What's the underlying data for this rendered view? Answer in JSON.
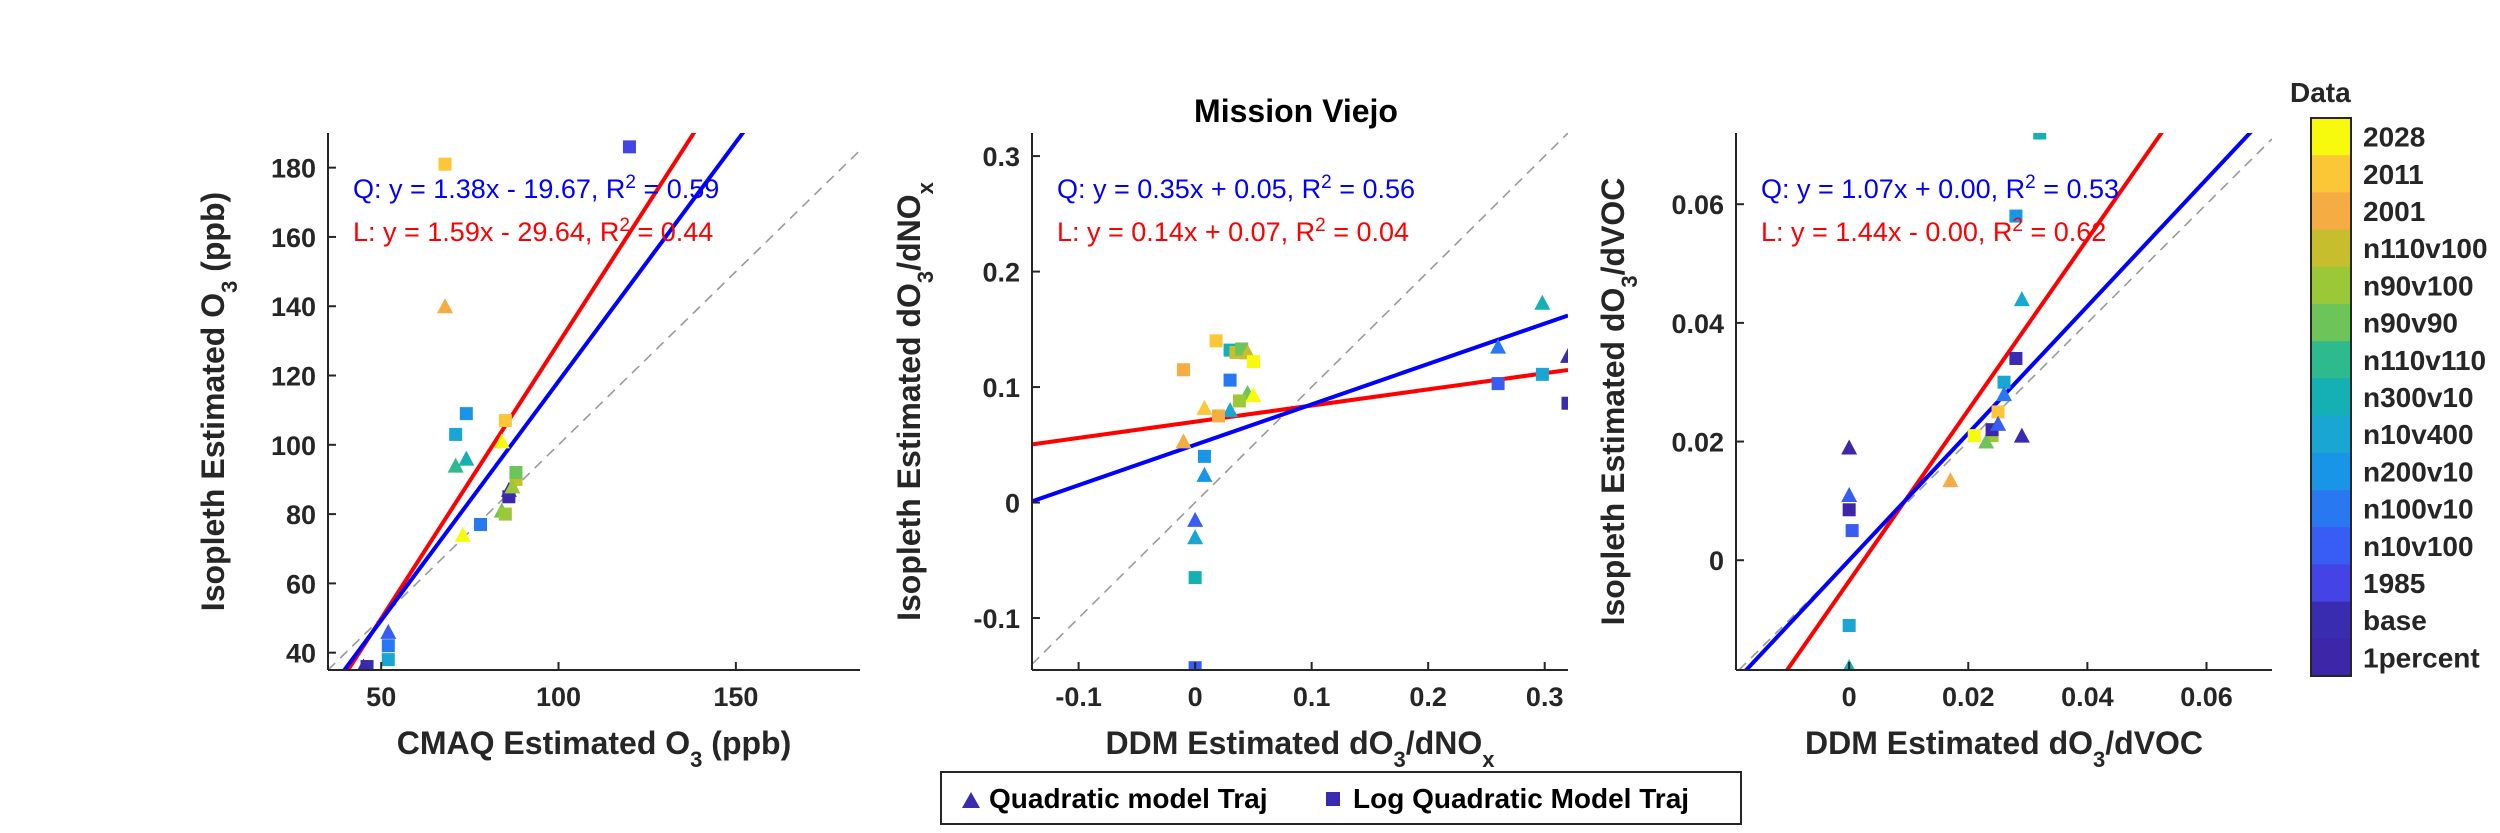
{
  "figure": {
    "title": "Mission Viejo",
    "colorbar": {
      "title": "Data",
      "labels": [
        "2028",
        "2011",
        "2001",
        "n110v100",
        "n90v100",
        "n90v90",
        "n110v110",
        "n300v10",
        "n10v400",
        "n200v10",
        "n100v10",
        "n10v100",
        "1985",
        "base",
        "1percent"
      ],
      "colors": [
        "#f8fa0d",
        "#fcc737",
        "#f5ac43",
        "#c7be2d",
        "#9bc836",
        "#6dc55a",
        "#2dba8d",
        "#15b0b4",
        "#1aa6d2",
        "#1895e6",
        "#2878f2",
        "#385df5",
        "#4443e5",
        "#3a2cb0",
        "#3e26a8"
      ]
    },
    "legend": {
      "items": [
        {
          "label": "Quadratic model Traj",
          "marker": "triangle",
          "marker_name": "triangle-marker-icon"
        },
        {
          "label": "Log Quadratic Model Traj",
          "marker": "square",
          "marker_name": "square-marker-icon"
        }
      ]
    }
  },
  "chart_data": [
    {
      "type": "scatter",
      "xlabel": "CMAQ Estimated O3 (ppb)",
      "ylabel": "Isopleth Estimated O3 (ppb)",
      "xlim": [
        35,
        185
      ],
      "ylim": [
        35,
        190
      ],
      "xticks": [
        50,
        100,
        150
      ],
      "yticks": [
        40,
        60,
        80,
        100,
        120,
        140,
        160,
        180
      ],
      "eq_q": "Q: y = 1.38x - 19.67, R",
      "eq_q_r2": " = 0.59",
      "eq_l": "L: y = 1.59x - 29.64, R",
      "eq_l_r2": " = 0.44",
      "fit_q": {
        "slope": 1.38,
        "intercept": -19.67,
        "color": "#0000ff"
      },
      "fit_l": {
        "slope": 1.59,
        "intercept": -29.64,
        "color": "#ff0000"
      },
      "points": [
        {
          "x": 68,
          "y": 181,
          "m": "s",
          "c": 1
        },
        {
          "x": 68,
          "y": 140,
          "m": "t",
          "c": 2
        },
        {
          "x": 120,
          "y": 186,
          "m": "s",
          "c": 12
        },
        {
          "x": 74,
          "y": 109,
          "m": "s",
          "c": 9
        },
        {
          "x": 71,
          "y": 103,
          "m": "s",
          "c": 8
        },
        {
          "x": 85,
          "y": 107,
          "m": "s",
          "c": 1
        },
        {
          "x": 84,
          "y": 101,
          "m": "t",
          "c": 0
        },
        {
          "x": 71,
          "y": 94,
          "m": "t",
          "c": 6
        },
        {
          "x": 74,
          "y": 96,
          "m": "t",
          "c": 7
        },
        {
          "x": 73,
          "y": 74,
          "m": "t",
          "c": 0
        },
        {
          "x": 78,
          "y": 77,
          "m": "s",
          "c": 10
        },
        {
          "x": 84,
          "y": 81,
          "m": "t",
          "c": 5
        },
        {
          "x": 86,
          "y": 85,
          "m": "s",
          "c": 14
        },
        {
          "x": 86,
          "y": 87,
          "m": "t",
          "c": 13
        },
        {
          "x": 88,
          "y": 90,
          "m": "s",
          "c": 3
        },
        {
          "x": 88,
          "y": 92,
          "m": "s",
          "c": 5
        },
        {
          "x": 87,
          "y": 88,
          "m": "t",
          "c": 4
        },
        {
          "x": 85,
          "y": 80,
          "m": "s",
          "c": 4
        },
        {
          "x": 52,
          "y": 46,
          "m": "t",
          "c": 11
        },
        {
          "x": 52,
          "y": 42,
          "m": "s",
          "c": 10
        },
        {
          "x": 52,
          "y": 38,
          "m": "s",
          "c": 8
        },
        {
          "x": 46,
          "y": 36,
          "m": "s",
          "c": 13
        },
        {
          "x": 45,
          "y": 36,
          "m": "t",
          "c": 14
        }
      ]
    },
    {
      "type": "scatter",
      "xlabel": "DDM Estimated dO3/dNOx",
      "ylabel": "Isopleth Estimated dO3/dNOx",
      "xlim": [
        -0.14,
        0.32
      ],
      "ylim": [
        -0.145,
        0.32
      ],
      "xticks": [
        -0.1,
        0,
        0.1,
        0.2,
        0.3
      ],
      "yticks": [
        -0.1,
        0,
        0.1,
        0.2,
        0.3
      ],
      "eq_q": "Q: y = 0.35x + 0.05, R",
      "eq_q_r2": " = 0.56",
      "eq_l": "L: y = 0.14x + 0.07, R",
      "eq_l_r2": " = 0.04",
      "fit_q": {
        "slope": 0.35,
        "intercept": 0.05,
        "color": "#0000ff"
      },
      "fit_l": {
        "slope": 0.14,
        "intercept": 0.07,
        "color": "#ff0000"
      },
      "points": [
        {
          "x": -0.01,
          "y": 0.115,
          "m": "s",
          "c": 2
        },
        {
          "x": -0.01,
          "y": 0.053,
          "m": "t",
          "c": 2
        },
        {
          "x": 0.018,
          "y": 0.14,
          "m": "s",
          "c": 1
        },
        {
          "x": 0.03,
          "y": 0.132,
          "m": "s",
          "c": 7
        },
        {
          "x": 0.035,
          "y": 0.13,
          "m": "s",
          "c": 3
        },
        {
          "x": 0.04,
          "y": 0.133,
          "m": "s",
          "c": 5
        },
        {
          "x": 0.045,
          "y": 0.13,
          "m": "t",
          "c": 3
        },
        {
          "x": 0.05,
          "y": 0.122,
          "m": "s",
          "c": 0
        },
        {
          "x": 0.03,
          "y": 0.106,
          "m": "s",
          "c": 10
        },
        {
          "x": 0.045,
          "y": 0.095,
          "m": "t",
          "c": 5
        },
        {
          "x": 0.05,
          "y": 0.093,
          "m": "t",
          "c": 0
        },
        {
          "x": 0.038,
          "y": 0.088,
          "m": "s",
          "c": 4
        },
        {
          "x": 0.03,
          "y": 0.08,
          "m": "t",
          "c": 8
        },
        {
          "x": 0.02,
          "y": 0.075,
          "m": "s",
          "c": 2
        },
        {
          "x": 0.008,
          "y": 0.082,
          "m": "t",
          "c": 1
        },
        {
          "x": 0.008,
          "y": 0.04,
          "m": "s",
          "c": 9
        },
        {
          "x": 0.008,
          "y": 0.024,
          "m": "t",
          "c": 9
        },
        {
          "x": 0.0,
          "y": -0.015,
          "m": "t",
          "c": 11
        },
        {
          "x": 0.0,
          "y": -0.03,
          "m": "t",
          "c": 8
        },
        {
          "x": 0.0,
          "y": -0.065,
          "m": "s",
          "c": 7
        },
        {
          "x": 0.0,
          "y": -0.143,
          "m": "s",
          "c": 11
        },
        {
          "x": 0.26,
          "y": 0.135,
          "m": "t",
          "c": 10
        },
        {
          "x": 0.26,
          "y": 0.103,
          "m": "s",
          "c": 11
        },
        {
          "x": 0.298,
          "y": 0.173,
          "m": "t",
          "c": 7
        },
        {
          "x": 0.298,
          "y": 0.111,
          "m": "s",
          "c": 8
        },
        {
          "x": 0.32,
          "y": 0.127,
          "m": "t",
          "c": 13
        },
        {
          "x": 0.32,
          "y": 0.086,
          "m": "s",
          "c": 13
        }
      ]
    },
    {
      "type": "scatter",
      "xlabel": "DDM Estimated dO3/dVOC",
      "ylabel": "Isopleth Estimated dO3/dVOC",
      "xlim": [
        -0.019,
        0.071
      ],
      "ylim": [
        -0.0185,
        0.072
      ],
      "xticks": [
        0,
        0.02,
        0.04,
        0.06
      ],
      "yticks": [
        0,
        0.02,
        0.04,
        0.06
      ],
      "eq_q": "Q: y = 1.07x + 0.00, R",
      "eq_q_r2": " = 0.53",
      "eq_l": "L: y = 1.44x - 0.00, R",
      "eq_l_r2": " = 0.62",
      "fit_q": {
        "slope": 1.07,
        "intercept": 0.0,
        "color": "#0000ff"
      },
      "fit_l": {
        "slope": 1.44,
        "intercept": -0.0035,
        "color": "#ff0000"
      },
      "points": [
        {
          "x": 0.032,
          "y": 0.072,
          "m": "s",
          "c": 7
        },
        {
          "x": 0.028,
          "y": 0.058,
          "m": "s",
          "c": 9
        },
        {
          "x": 0.029,
          "y": 0.044,
          "m": "t",
          "c": 8
        },
        {
          "x": 0.028,
          "y": 0.034,
          "m": "s",
          "c": 13
        },
        {
          "x": 0.026,
          "y": 0.03,
          "m": "s",
          "c": 8
        },
        {
          "x": 0.026,
          "y": 0.028,
          "m": "t",
          "c": 10
        },
        {
          "x": 0.025,
          "y": 0.025,
          "m": "s",
          "c": 1
        },
        {
          "x": 0.025,
          "y": 0.023,
          "m": "t",
          "c": 3
        },
        {
          "x": 0.024,
          "y": 0.021,
          "m": "s",
          "c": 4
        },
        {
          "x": 0.023,
          "y": 0.02,
          "m": "t",
          "c": 5
        },
        {
          "x": 0.024,
          "y": 0.022,
          "m": "s",
          "c": 14
        },
        {
          "x": 0.025,
          "y": 0.023,
          "m": "t",
          "c": 11
        },
        {
          "x": 0.021,
          "y": 0.021,
          "m": "s",
          "c": 0
        },
        {
          "x": 0.029,
          "y": 0.021,
          "m": "t",
          "c": 13
        },
        {
          "x": 0.017,
          "y": 0.0135,
          "m": "t",
          "c": 2
        },
        {
          "x": 0.0,
          "y": 0.019,
          "m": "t",
          "c": 14
        },
        {
          "x": 0.0,
          "y": 0.011,
          "m": "t",
          "c": 11
        },
        {
          "x": 0.0,
          "y": 0.0085,
          "m": "s",
          "c": 14
        },
        {
          "x": 0.0005,
          "y": 0.005,
          "m": "s",
          "c": 11
        },
        {
          "x": 0.0,
          "y": -0.011,
          "m": "s",
          "c": 8
        },
        {
          "x": 0.0,
          "y": -0.018,
          "m": "t",
          "c": 7
        }
      ]
    }
  ]
}
